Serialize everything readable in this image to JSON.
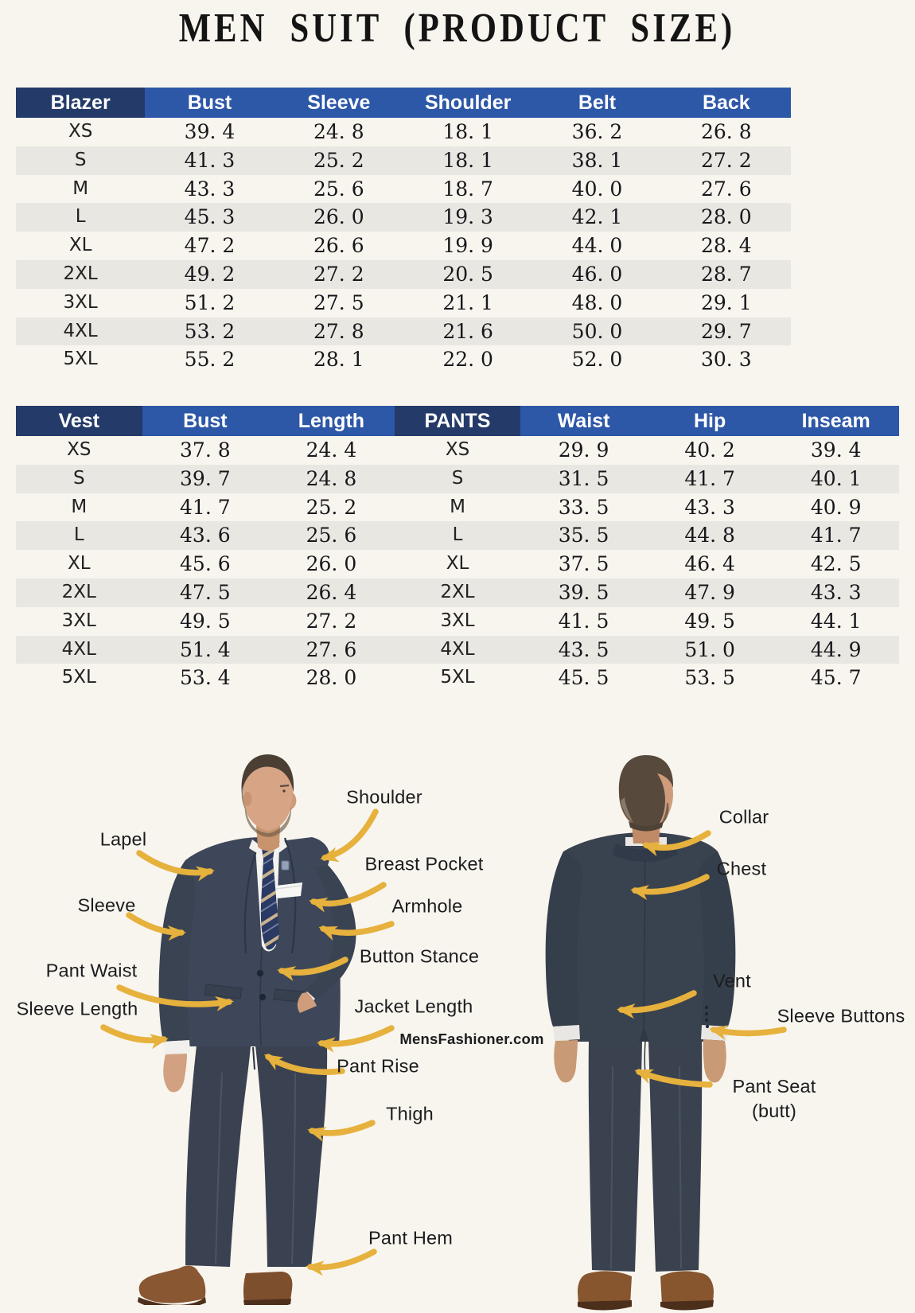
{
  "title": "MEN SUIT (PRODUCT SIZE)",
  "chart_data": [
    {
      "type": "table",
      "title": "Blazer size table",
      "columns": [
        "Blazer",
        "Bust",
        "Sleeve",
        "Shoulder",
        "Belt",
        "Back"
      ],
      "size_columns": [
        0
      ],
      "rows": [
        [
          "XS",
          39.4,
          24.8,
          18.1,
          36.2,
          26.8
        ],
        [
          "S",
          41.3,
          25.2,
          18.1,
          38.1,
          27.2
        ],
        [
          "M",
          43.3,
          25.6,
          18.7,
          40.0,
          27.6
        ],
        [
          "L",
          45.3,
          26.0,
          19.3,
          42.1,
          28.0
        ],
        [
          "XL",
          47.2,
          26.6,
          19.9,
          44.0,
          28.4
        ],
        [
          "2XL",
          49.2,
          27.2,
          20.5,
          46.0,
          28.7
        ],
        [
          "3XL",
          51.2,
          27.5,
          21.1,
          48.0,
          29.1
        ],
        [
          "4XL",
          53.2,
          27.8,
          21.6,
          50.0,
          29.7
        ],
        [
          "5XL",
          55.2,
          28.1,
          22.0,
          52.0,
          30.3
        ]
      ]
    },
    {
      "type": "table",
      "title": "Vest and Pants size table",
      "columns": [
        "Vest",
        "Bust",
        "Length",
        "PANTS",
        "Waist",
        "Hip",
        "Inseam"
      ],
      "size_columns": [
        0,
        3
      ],
      "rows": [
        [
          "XS",
          37.8,
          24.4,
          "XS",
          29.9,
          40.2,
          39.4
        ],
        [
          "S",
          39.7,
          24.8,
          "S",
          31.5,
          41.7,
          40.1
        ],
        [
          "M",
          41.7,
          25.2,
          "M",
          33.5,
          43.3,
          40.9
        ],
        [
          "L",
          43.6,
          25.6,
          "L",
          35.5,
          44.8,
          41.7
        ],
        [
          "XL",
          45.6,
          26.0,
          "XL",
          37.5,
          46.4,
          42.5
        ],
        [
          "2XL",
          47.5,
          26.4,
          "2XL",
          39.5,
          47.9,
          43.3
        ],
        [
          "3XL",
          49.5,
          27.2,
          "3XL",
          41.5,
          49.5,
          44.1
        ],
        [
          "4XL",
          51.4,
          27.6,
          "4XL",
          43.5,
          51.0,
          44.9
        ],
        [
          "5XL",
          53.4,
          28.0,
          "5XL",
          45.5,
          53.5,
          45.7
        ]
      ]
    }
  ],
  "diagram": {
    "watermark": "MensFashioner.com",
    "labels": {
      "shoulder": "Shoulder",
      "lapel": "Lapel",
      "breast_pocket": "Breast Pocket",
      "sleeve": "Sleeve",
      "armhole": "Armhole",
      "button_stance": "Button Stance",
      "pant_waist": "Pant Waist",
      "sleeve_length": "Sleeve Length",
      "jacket_length": "Jacket Length",
      "pant_rise": "Pant Rise",
      "thigh": "Thigh",
      "pant_hem": "Pant Hem",
      "collar": "Collar",
      "chest": "Chest",
      "vent": "Vent",
      "sleeve_buttons": "Sleeve Buttons",
      "pant_seat_line1": "Pant Seat",
      "pant_seat_line2": "(butt)"
    }
  },
  "colors": {
    "background": "#f8f5ee",
    "header_blue": "#2d57a7",
    "header_dark_navy": "#243a69",
    "row_stripe": "#e9e7e2",
    "arrow_gold": "#e6b13c",
    "suit_navy": "#3d4759",
    "label_text": "#1c1c1f"
  }
}
